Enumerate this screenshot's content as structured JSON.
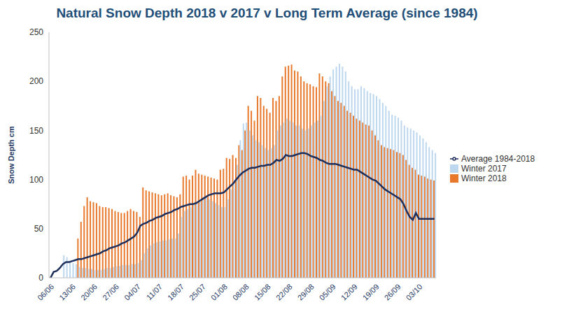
{
  "chart_data": {
    "type": "bar",
    "title": "Natural Snow Depth 2018 v 2017 v Long Term Average (since 1984)",
    "y_label": "Snow Depth cm",
    "categories": [
      "06/06",
      null,
      null,
      null,
      null,
      null,
      null,
      "13/06",
      null,
      null,
      null,
      null,
      null,
      null,
      "20/06",
      null,
      null,
      null,
      null,
      null,
      null,
      "27/06",
      null,
      null,
      null,
      null,
      null,
      null,
      "04/07",
      null,
      null,
      null,
      null,
      null,
      null,
      "11/07",
      null,
      null,
      null,
      null,
      null,
      null,
      "18/07",
      null,
      null,
      null,
      null,
      null,
      null,
      "25/07",
      null,
      null,
      null,
      null,
      null,
      null,
      "01/08",
      null,
      null,
      null,
      null,
      null,
      null,
      "08/08",
      null,
      null,
      null,
      null,
      null,
      null,
      "15/08",
      null,
      null,
      null,
      null,
      null,
      null,
      "22/08",
      null,
      null,
      null,
      null,
      null,
      null,
      "29/08",
      null,
      null,
      null,
      null,
      null,
      null,
      "05/09",
      null,
      null,
      null,
      null,
      null,
      null,
      "12/09",
      null,
      null,
      null,
      null,
      null,
      null,
      "19/09",
      null,
      null,
      null,
      null,
      null,
      null,
      "26/09",
      null,
      null,
      null,
      null,
      null,
      null,
      "03/10",
      null,
      null,
      null,
      null,
      null
    ],
    "series": [
      {
        "name": "Winter 2018",
        "type": "bar",
        "color": "#e8792c",
        "values": [
          null,
          null,
          null,
          null,
          null,
          null,
          null,
          null,
          null,
          40,
          57,
          73,
          82,
          78,
          77,
          76,
          73,
          72,
          72,
          71,
          70,
          68,
          67,
          66,
          66,
          68,
          70,
          68,
          67,
          62,
          92,
          89,
          88,
          87,
          86,
          85,
          84,
          85,
          86,
          84,
          83,
          82,
          85,
          103,
          104,
          100,
          104,
          110,
          106,
          105,
          104,
          103,
          102,
          101,
          100,
          110,
          111,
          122,
          121,
          125,
          122,
          135,
          130,
          150,
          175,
          170,
          160,
          185,
          183,
          175,
          172,
          168,
          183,
          180,
          185,
          205,
          215,
          216,
          217,
          211,
          210,
          205,
          200,
          198,
          197,
          195,
          194,
          208,
          205,
          200,
          198,
          190,
          185,
          180,
          178,
          175,
          170,
          168,
          165,
          162,
          160,
          158,
          156,
          155,
          150,
          145,
          140,
          135,
          133,
          132,
          131,
          130,
          128,
          127,
          125,
          120,
          115,
          112,
          110,
          105,
          104,
          103,
          101,
          100,
          99
        ]
      },
      {
        "name": "Winter 2017",
        "type": "bar",
        "color": "#bdd7ee",
        "values": [
          null,
          null,
          null,
          null,
          23,
          21,
          17,
          15,
          14,
          11,
          10,
          10,
          9,
          9,
          8,
          8,
          8,
          9,
          10,
          10,
          11,
          12,
          12,
          13,
          13,
          13,
          14,
          14,
          15,
          18,
          25,
          30,
          33,
          35,
          36,
          37,
          38,
          38,
          39,
          40,
          40,
          45,
          62,
          68,
          70,
          72,
          74,
          76,
          78,
          80,
          82,
          80,
          78,
          76,
          74,
          72,
          72,
          80,
          90,
          100,
          115,
          140,
          157,
          158,
          150,
          145,
          140,
          138,
          135,
          132,
          130,
          132,
          135,
          150,
          155,
          158,
          162,
          160,
          158,
          155,
          155,
          152,
          150,
          152,
          155,
          158,
          160,
          165,
          180,
          195,
          205,
          212,
          215,
          218,
          215,
          210,
          200,
          195,
          192,
          192,
          195,
          193,
          190,
          188,
          187,
          185,
          182,
          178,
          175,
          170,
          166,
          165,
          163,
          160,
          155,
          153,
          152,
          150,
          148,
          145,
          142,
          138,
          133,
          130,
          127
        ]
      },
      {
        "name": "Average 1984-2018",
        "type": "line",
        "color": "#1f2f5c",
        "values": [
          0,
          6,
          7,
          10,
          14,
          16,
          16,
          17,
          18,
          19,
          19,
          20,
          21,
          22,
          23,
          24,
          25,
          27,
          28,
          30,
          31,
          32,
          33,
          35,
          36,
          38,
          40,
          42,
          46,
          53,
          55,
          56,
          58,
          59,
          61,
          62,
          63,
          65,
          66,
          67,
          69,
          70,
          72,
          73,
          74,
          75,
          75,
          76,
          78,
          80,
          82,
          84,
          85,
          86,
          86,
          86,
          87,
          90,
          93,
          96,
          100,
          104,
          107,
          109,
          111,
          112,
          112,
          113,
          114,
          114,
          115,
          115,
          117,
          120,
          119,
          121,
          125,
          124,
          124,
          125,
          126,
          127,
          127,
          126,
          124,
          123,
          122,
          120,
          119,
          117,
          116,
          116,
          116,
          115,
          114,
          113,
          112,
          111,
          110,
          110,
          108,
          106,
          104,
          102,
          100,
          99,
          96,
          93,
          90,
          88,
          86,
          84,
          82,
          80,
          75,
          68,
          62,
          59,
          66,
          60,
          60,
          60,
          60,
          60,
          60
        ]
      }
    ],
    "ylim": [
      0,
      250
    ],
    "yticks": [
      0,
      50,
      100,
      150,
      200,
      250
    ],
    "grid": false,
    "legend": "right"
  }
}
